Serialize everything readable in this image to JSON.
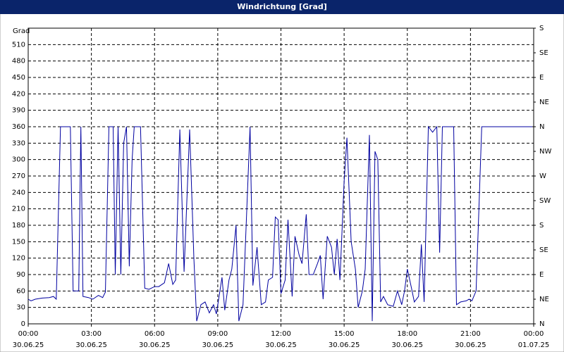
{
  "chart_data": {
    "type": "line",
    "title": "Windrichtung [Grad]",
    "y_label": "Grad",
    "grid": true,
    "grid_style": "dashed",
    "ylim": [
      0,
      540
    ],
    "yticks": [
      0,
      30,
      60,
      90,
      120,
      150,
      180,
      210,
      240,
      270,
      300,
      330,
      360,
      390,
      420,
      450,
      480,
      510
    ],
    "y2lim": [
      0,
      540
    ],
    "y2ticks": [
      {
        "value": 0,
        "label": "N"
      },
      {
        "value": 45,
        "label": "NE"
      },
      {
        "value": 90,
        "label": "E"
      },
      {
        "value": 135,
        "label": "SE"
      },
      {
        "value": 180,
        "label": "S"
      },
      {
        "value": 225,
        "label": "SW"
      },
      {
        "value": 270,
        "label": "W"
      },
      {
        "value": 315,
        "label": "NW"
      },
      {
        "value": 360,
        "label": "N"
      },
      {
        "value": 405,
        "label": "NE"
      },
      {
        "value": 450,
        "label": "E"
      },
      {
        "value": 495,
        "label": "SE"
      },
      {
        "value": 540,
        "label": "S"
      }
    ],
    "xlim": [
      "30.06.25 00:00",
      "01.07.25 00:00"
    ],
    "xticks": [
      {
        "value": "30.06.25 00:00",
        "label": [
          "00:00",
          "30.06.25"
        ]
      },
      {
        "value": "30.06.25 03:00",
        "label": [
          "03:00",
          "30.06.25"
        ]
      },
      {
        "value": "30.06.25 06:00",
        "label": [
          "06:00",
          "30.06.25"
        ]
      },
      {
        "value": "30.06.25 09:00",
        "label": [
          "09:00",
          "30.06.25"
        ]
      },
      {
        "value": "30.06.25 12:00",
        "label": [
          "12:00",
          "30.06.25"
        ]
      },
      {
        "value": "30.06.25 15:00",
        "label": [
          "15:00",
          "30.06.25"
        ]
      },
      {
        "value": "30.06.25 18:00",
        "label": [
          "18:00",
          "30.06.25"
        ]
      },
      {
        "value": "30.06.25 21:00",
        "label": [
          "21:00",
          "30.06.25"
        ]
      },
      {
        "value": "01.07.25 00:00",
        "label": [
          "00:00",
          "01.07.25"
        ]
      }
    ],
    "series": [
      {
        "color": "#0000a0",
        "x": [
          "30.06.25 00:00",
          "30.06.25 00:08",
          "30.06.25 00:20",
          "30.06.25 00:40",
          "30.06.25 01:00",
          "30.06.25 01:12",
          "30.06.25 01:20",
          "30.06.25 01:32",
          "30.06.25 02:00",
          "30.06.25 02:08",
          "30.06.25 02:24",
          "30.06.25 02:30",
          "30.06.25 02:36",
          "30.06.25 02:52",
          "30.06.25 03:04",
          "30.06.25 03:20",
          "30.06.25 03:32",
          "30.06.25 03:40",
          "30.06.25 03:50",
          "30.06.25 04:02",
          "30.06.25 04:08",
          "30.06.25 04:16",
          "30.06.25 04:24",
          "30.06.25 04:32",
          "30.06.25 04:40",
          "30.06.25 04:48",
          "30.06.25 04:56",
          "30.06.25 05:02",
          "30.06.25 05:20",
          "30.06.25 05:32",
          "30.06.25 05:44",
          "30.06.25 06:00",
          "30.06.25 06:12",
          "30.06.25 06:28",
          "30.06.25 06:40",
          "30.06.25 06:52",
          "30.06.25 07:00",
          "30.06.25 07:12",
          "30.06.25 07:24",
          "30.06.25 07:40",
          "30.06.25 07:52",
          "30.06.25 08:00",
          "30.06.25 08:12",
          "30.06.25 08:24",
          "30.06.25 08:36",
          "30.06.25 08:48",
          "30.06.25 08:56",
          "30.06.25 09:12",
          "30.06.25 09:20",
          "30.06.25 09:32",
          "30.06.25 09:40",
          "30.06.25 09:52",
          "30.06.25 10:00",
          "30.06.25 10:12",
          "30.06.25 10:32",
          "30.06.25 10:40",
          "30.06.25 10:52",
          "30.06.25 11:04",
          "30.06.25 11:16",
          "30.06.25 11:24",
          "30.06.25 11:36",
          "30.06.25 11:44",
          "30.06.25 11:52",
          "30.06.25 12:00",
          "30.06.25 12:12",
          "30.06.25 12:20",
          "30.06.25 12:32",
          "30.06.25 12:40",
          "30.06.25 12:52",
          "30.06.25 13:00",
          "30.06.25 13:12",
          "30.06.25 13:20",
          "30.06.25 13:32",
          "30.06.25 13:44",
          "30.06.25 13:52",
          "30.06.25 14:00",
          "30.06.25 14:12",
          "30.06.25 14:24",
          "30.06.25 14:32",
          "30.06.25 14:40",
          "30.06.25 14:48",
          "30.06.25 15:00",
          "30.06.25 15:08",
          "30.06.25 15:20",
          "30.06.25 15:32",
          "30.06.25 15:40",
          "30.06.25 15:52",
          "30.06.25 16:00",
          "30.06.25 16:12",
          "30.06.25 16:20",
          "30.06.25 16:28",
          "30.06.25 16:36",
          "30.06.25 16:44",
          "30.06.25 16:52",
          "30.06.25 17:04",
          "30.06.25 17:20",
          "30.06.25 17:32",
          "30.06.25 17:44",
          "30.06.25 17:52",
          "30.06.25 18:00",
          "30.06.25 18:12",
          "30.06.25 18:20",
          "30.06.25 18:32",
          "30.06.25 18:40",
          "30.06.25 18:48",
          "30.06.25 19:00",
          "30.06.25 19:12",
          "30.06.25 19:24",
          "30.06.25 19:32",
          "30.06.25 19:40",
          "30.06.25 20:12",
          "30.06.25 20:20",
          "30.06.25 20:32",
          "30.06.25 20:48",
          "30.06.25 20:56",
          "30.06.25 21:04",
          "30.06.25 21:16",
          "30.06.25 21:32",
          "30.06.25 23:56"
        ],
        "values": [
          45,
          42,
          45,
          47,
          48,
          50,
          45,
          360,
          360,
          60,
          60,
          360,
          50,
          48,
          45,
          52,
          48,
          58,
          360,
          360,
          90,
          360,
          90,
          330,
          360,
          105,
          300,
          360,
          360,
          65,
          63,
          68,
          68,
          75,
          110,
          72,
          80,
          355,
          95,
          355,
          120,
          5,
          35,
          40,
          20,
          35,
          18,
          85,
          25,
          80,
          100,
          180,
          5,
          35,
          360,
          70,
          140,
          35,
          40,
          80,
          85,
          195,
          190,
          55,
          80,
          190,
          50,
          160,
          125,
          110,
          200,
          90,
          90,
          110,
          125,
          45,
          160,
          140,
          90,
          155,
          80,
          260,
          340,
          150,
          100,
          30,
          60,
          100,
          345,
          5,
          315,
          300,
          40,
          50,
          35,
          32,
          60,
          35,
          60,
          100,
          65,
          40,
          50,
          145,
          40,
          360,
          350,
          360,
          130,
          360,
          360,
          35,
          40,
          42,
          45,
          42,
          60,
          360,
          360
        ]
      }
    ]
  }
}
